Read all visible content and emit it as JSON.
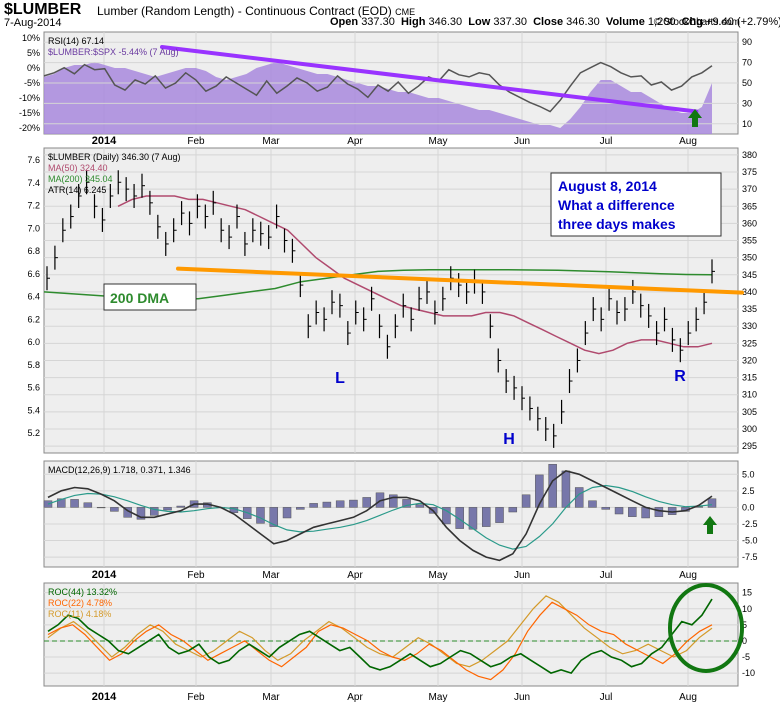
{
  "header": {
    "symbol": "$LUMBER",
    "name": "Lumber (Random Length) - Continuous Contract (EOD)",
    "exchange": "CME",
    "date": "7-Aug-2014",
    "open_label": "Open",
    "open": "337.30",
    "high_label": "High",
    "high": "346.30",
    "low_label": "Low",
    "low": "337.30",
    "close_label": "Close",
    "close": "346.30",
    "volume_label": "Volume",
    "volume": "1,200",
    "chg_label": "Chg",
    "chg": "+9.40 (+2.79%)",
    "watermark": "© StockCharts.com"
  },
  "colors": {
    "panel_bg": "#eeeeee",
    "area_purple": "#a888dd",
    "trend_purple": "#9933ff",
    "orange_line": "#ff9900",
    "ma50": "#b04a6e",
    "ma200": "#2e8b2e",
    "roc44": "#006600",
    "roc22": "#ff6600",
    "roc11": "#d49a2a",
    "macd_hist": "#7777aa",
    "signal_arrow": "#117711",
    "callout_text": "#0000cc"
  },
  "x_months": [
    "2014",
    "Feb",
    "Mar",
    "Apr",
    "May",
    "Jun",
    "Jul",
    "Aug"
  ],
  "chart_data": [
    {
      "panel": "rsi",
      "type": "area",
      "legend": [
        "RSI(14) 67.14",
        "$LUMBER:$SPX -5.44% (7 Aug)"
      ],
      "right_ticks": [
        "90",
        "70",
        "50",
        "30",
        "10"
      ],
      "left_ticks": [
        "10%",
        "5%",
        "0%",
        "-5%",
        "-10%",
        "-15%",
        "-20%"
      ],
      "ylim_right": [
        0,
        100
      ],
      "ylim_left": [
        -22,
        12
      ],
      "rsi_values": [
        57,
        60,
        65,
        59,
        68,
        63,
        64,
        48,
        43,
        53,
        49,
        57,
        45,
        50,
        60,
        53,
        42,
        47,
        56,
        50,
        44,
        38,
        52,
        40,
        47,
        55,
        50,
        42,
        46,
        57,
        49,
        44,
        36,
        48,
        42,
        51,
        40,
        47,
        56,
        52,
        63,
        58,
        56,
        60,
        58,
        48,
        41,
        36,
        31,
        27,
        22,
        33,
        47,
        60,
        65,
        70,
        66,
        60,
        56,
        57,
        48,
        51,
        43,
        47,
        56,
        60,
        67
      ],
      "ratio_values": [
        -3,
        -2,
        0,
        1,
        1,
        2,
        1,
        0,
        0,
        -1,
        -2,
        -3,
        -2,
        -1,
        0,
        0,
        -1,
        -3,
        -4,
        -3,
        -2,
        0,
        1,
        2,
        1,
        0,
        -1,
        -2,
        -2,
        -3,
        -4,
        -5,
        -6,
        -6,
        -7,
        -8,
        -8,
        -9,
        -10,
        -10,
        -11,
        -12,
        -13,
        -14,
        -14,
        -15,
        -16,
        -17,
        -18,
        -19,
        -19,
        -20,
        -17,
        -13,
        -8,
        -4,
        -4,
        -6,
        -8,
        -8,
        -10,
        -12,
        -14,
        -15,
        -15,
        -13,
        -5
      ],
      "trendline": [
        [
          0.17,
          7.0
        ],
        [
          0.94,
          -14.5
        ]
      ]
    },
    {
      "panel": "price",
      "type": "line",
      "legend": [
        "$LUMBER (Daily) 346.30 (7 Aug)",
        "MA(50) 324.40",
        "MA(200) 345.04",
        "ATR(14) 6.245"
      ],
      "right_ticks": [
        "380",
        "375",
        "370",
        "365",
        "360",
        "355",
        "350",
        "345",
        "340",
        "335",
        "330",
        "325",
        "320",
        "315",
        "310",
        "305",
        "300",
        "295"
      ],
      "left_ticks": [
        "7.6",
        "7.4",
        "7.2",
        "7.0",
        "6.8",
        "6.6",
        "6.4",
        "6.2",
        "6.0",
        "5.8",
        "5.6",
        "5.4",
        "5.2"
      ],
      "ylim": [
        293,
        382
      ],
      "close_values": [
        344,
        350,
        358,
        362,
        368,
        372,
        365,
        361,
        368,
        372,
        370,
        368,
        371,
        366,
        359,
        354,
        358,
        363,
        360,
        365,
        362,
        366,
        358,
        356,
        362,
        354,
        358,
        357,
        356,
        362,
        355,
        352,
        342,
        330,
        334,
        332,
        337,
        336,
        328,
        334,
        332,
        338,
        330,
        324,
        330,
        336,
        332,
        338,
        340,
        334,
        338,
        344,
        342,
        340,
        343,
        340,
        330,
        320,
        314,
        312,
        309,
        306,
        303,
        300,
        298,
        305,
        314,
        320,
        328,
        335,
        332,
        338,
        334,
        335,
        340,
        336,
        333,
        328,
        332,
        326,
        323,
        328,
        332,
        337,
        346
      ],
      "ma50_values": [
        365,
        367,
        368,
        368,
        368,
        367,
        367,
        366,
        365,
        364,
        362,
        360,
        358,
        354,
        350,
        347,
        344,
        342,
        340,
        338,
        336,
        335,
        334,
        333,
        333,
        333,
        334,
        334,
        333,
        331,
        329,
        327,
        325,
        323,
        322,
        323,
        325,
        326,
        326,
        325,
        324,
        324,
        325
      ],
      "ma200_values": [
        340,
        339.5,
        339,
        338.5,
        338,
        338,
        338,
        339,
        340,
        341,
        343,
        344,
        345,
        346,
        346.3,
        346.5,
        346.5,
        346.5,
        346.5,
        346.4,
        346.3,
        346.1,
        345.9,
        345.6,
        345.3,
        345.1,
        345.0
      ],
      "annotations": [
        "200 DMA",
        "L",
        "H",
        "R",
        "August 8, 2014",
        "What a difference",
        "three days makes"
      ]
    },
    {
      "panel": "macd",
      "type": "line",
      "legend": [
        "MACD(12,26,9) 1.718, 0.371, 1.346"
      ],
      "right_ticks": [
        "5.0",
        "2.5",
        "0.0",
        "-2.5",
        "-5.0",
        "-7.5"
      ],
      "ylim": [
        -9,
        7
      ],
      "macd_values": [
        1.5,
        2.5,
        3.0,
        2.8,
        2.0,
        1.0,
        -0.5,
        -1.5,
        -1.5,
        -1.0,
        -0.5,
        0.5,
        0.5,
        0.0,
        -1.0,
        -2.5,
        -4.0,
        -5.5,
        -5.0,
        -4.0,
        -3.0,
        -2.5,
        -2.0,
        -1.5,
        -0.5,
        1.0,
        1.5,
        1.5,
        1.0,
        -0.5,
        -3.0,
        -5.0,
        -6.5,
        -7.5,
        -8.0,
        -7.0,
        -4.0,
        0.5,
        4.0,
        5.5,
        5.0,
        4.0,
        3.0,
        2.0,
        1.0,
        0.0,
        -0.5,
        -0.7,
        -0.5,
        0.3,
        1.7
      ],
      "signal_values": [
        0.5,
        1.2,
        1.8,
        2.1,
        2.0,
        1.6,
        1.0,
        0.3,
        -0.3,
        -0.6,
        -0.7,
        -0.5,
        -0.2,
        0.0,
        -0.2,
        -0.8,
        -1.6,
        -2.6,
        -3.4,
        -3.7,
        -3.6,
        -3.3,
        -3.0,
        -2.6,
        -2.0,
        -1.2,
        -0.4,
        0.3,
        0.6,
        0.4,
        -0.5,
        -1.8,
        -3.2,
        -4.6,
        -5.7,
        -6.3,
        -5.9,
        -4.4,
        -2.5,
        0.0,
        2.0,
        3.0,
        3.3,
        3.0,
        2.4,
        1.6,
        0.9,
        0.4,
        0.1,
        0.2,
        0.4
      ],
      "histogram_values": [
        1.0,
        1.3,
        1.2,
        0.7,
        0.0,
        -0.6,
        -1.5,
        -1.8,
        -1.2,
        -0.4,
        0.2,
        1.0,
        0.7,
        0.0,
        -0.8,
        -1.7,
        -2.4,
        -2.9,
        -1.6,
        -0.3,
        0.6,
        0.8,
        1.0,
        1.1,
        1.5,
        2.2,
        1.9,
        1.2,
        0.4,
        -0.9,
        -2.5,
        -3.2,
        -3.3,
        -2.9,
        -2.3,
        -0.7,
        1.9,
        4.9,
        6.5,
        5.5,
        3.0,
        1.0,
        -0.3,
        -1.0,
        -1.4,
        -1.6,
        -1.4,
        -1.1,
        -0.6,
        0.1,
        1.3
      ]
    },
    {
      "panel": "roc",
      "type": "line",
      "legend": [
        "ROC(44) 13.32%",
        "ROC(22) 4.78%",
        "ROC(11) 4.18%"
      ],
      "right_ticks": [
        "15",
        "10",
        "5",
        "0",
        "-5",
        "-10"
      ],
      "ylim": [
        -14,
        18
      ],
      "roc44_values": [
        3,
        5,
        8,
        7,
        4,
        2,
        0,
        -3,
        -4,
        -2,
        0,
        2,
        -2,
        -4,
        -3,
        -1,
        -5,
        -7,
        -6,
        -3,
        -1,
        -3,
        -5,
        -2,
        0,
        2,
        3,
        1,
        -1,
        -3,
        -2,
        -5,
        -8,
        -9,
        -8,
        -6,
        -4,
        -6,
        -8,
        -7,
        -5,
        -3,
        -4,
        -6,
        -8,
        -7,
        -5,
        -4,
        -6,
        -8,
        -10,
        -9,
        -10,
        -6,
        -4,
        -3,
        -5,
        -6,
        -8,
        -7,
        -4,
        -2,
        2,
        6,
        5,
        8,
        13
      ],
      "roc22_values": [
        2,
        4,
        5,
        2,
        -2,
        -6,
        -4,
        0,
        3,
        5,
        2,
        0,
        -3,
        -6,
        -4,
        -2,
        0,
        -3,
        -6,
        -8,
        -5,
        -2,
        3,
        5,
        4,
        2,
        0,
        -3,
        -5,
        -6,
        -4,
        -1,
        -3,
        -6,
        -9,
        -11,
        -12,
        -9,
        -4,
        3,
        8,
        12,
        10,
        8,
        5,
        3,
        2,
        -1,
        -3,
        -5,
        -7,
        -4,
        0,
        3,
        5
      ],
      "roc11_values": [
        1,
        4,
        6,
        3,
        -1,
        -5,
        -2,
        2,
        5,
        3,
        -1,
        -3,
        -5,
        -3,
        0,
        3,
        1,
        -3,
        -6,
        -4,
        0,
        3,
        6,
        4,
        1,
        -2,
        -4,
        -5,
        -2,
        1,
        -1,
        -4,
        -7,
        -8,
        -6,
        -3,
        0,
        5,
        10,
        14,
        12,
        8,
        4,
        1,
        -2,
        -4,
        -3,
        -1,
        -3,
        -5,
        -3,
        1,
        4
      ]
    }
  ]
}
